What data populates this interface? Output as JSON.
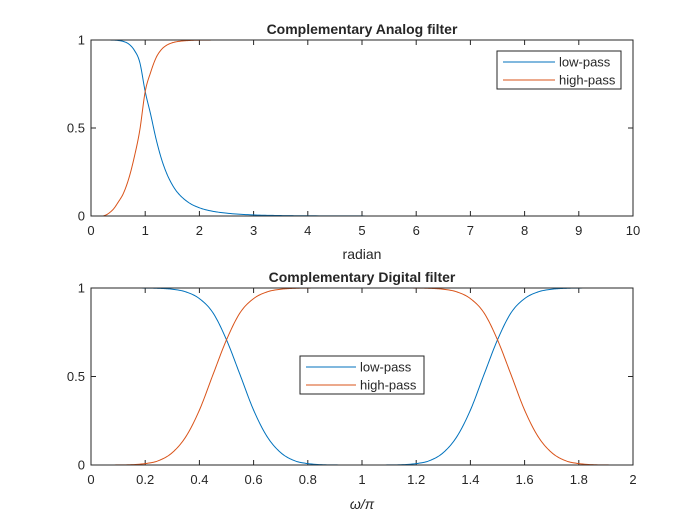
{
  "colors": {
    "low_pass": "#0072BD",
    "high_pass": "#D95319",
    "axes": "#262626",
    "background": "#FFFFFF"
  },
  "chart_data": [
    {
      "type": "line",
      "title": "Complementary Analog filter",
      "xlabel": "radian",
      "ylabel": "",
      "xlim": [
        0,
        10
      ],
      "ylim": [
        0,
        1
      ],
      "xticks": [
        0,
        1,
        2,
        3,
        4,
        5,
        6,
        7,
        8,
        9,
        10
      ],
      "yticks": [
        0,
        0.5,
        1
      ],
      "grid": false,
      "legend_position": "top-right",
      "series": [
        {
          "name": "low-pass",
          "x": [
            0,
            0.2,
            0.4,
            0.5,
            0.6,
            0.7,
            0.8,
            0.9,
            1.0,
            1.1,
            1.2,
            1.3,
            1.4,
            1.5,
            1.6,
            1.8,
            2.0,
            2.2,
            2.5,
            3.0,
            3.5,
            4.0,
            5.0,
            6.0,
            7.0,
            8.0,
            9.0,
            10.0
          ],
          "y": [
            1.0,
            1.0,
            0.9994,
            0.9973,
            0.9914,
            0.9764,
            0.9415,
            0.873,
            0.7071,
            0.578,
            0.4383,
            0.3244,
            0.2393,
            0.1773,
            0.1322,
            0.0768,
            0.0467,
            0.0296,
            0.0162,
            0.0061,
            0.0026,
            0.0013,
            0.0004,
            0.0001,
            0.0001,
            0.0,
            0.0,
            0.0
          ]
        },
        {
          "name": "high-pass",
          "x": [
            0,
            0.2,
            0.4,
            0.5,
            0.6,
            0.7,
            0.8,
            0.9,
            1.0,
            1.1,
            1.2,
            1.3,
            1.4,
            1.5,
            1.6,
            1.8,
            2.0,
            2.2,
            2.5,
            3.0,
            3.5,
            4.0,
            5.0,
            6.0,
            7.0,
            8.0,
            9.0,
            10.0
          ],
          "y": [
            0.0,
            0.0,
            0.0348,
            0.0777,
            0.1302,
            0.2159,
            0.3369,
            0.4875,
            0.7071,
            0.8159,
            0.8988,
            0.9459,
            0.971,
            0.9842,
            0.9912,
            0.997,
            0.9989,
            0.9996,
            0.9999,
            1.0,
            1.0,
            1.0,
            1.0,
            1.0,
            1.0,
            1.0,
            1.0,
            1.0
          ]
        }
      ]
    },
    {
      "type": "line",
      "title": "Complementary Digital filter",
      "xlabel": "ω/π",
      "ylabel": "",
      "xlim": [
        0,
        2
      ],
      "ylim": [
        0,
        1
      ],
      "xticks": [
        "0",
        "0.2",
        "0.4",
        "0.6",
        "0.8",
        "1",
        "1.2",
        "1.4",
        "1.6",
        "1.8",
        "2"
      ],
      "yticks": [
        0,
        0.5,
        1
      ],
      "grid": false,
      "legend_position": "center",
      "series": [
        {
          "name": "low-pass",
          "x": [
            0,
            0.1,
            0.2,
            0.25,
            0.3,
            0.35,
            0.4,
            0.45,
            0.5,
            0.55,
            0.6,
            0.65,
            0.7,
            0.75,
            0.8,
            0.9,
            1.0,
            1.1,
            1.2,
            1.25,
            1.3,
            1.35,
            1.4,
            1.45,
            1.5,
            1.55,
            1.6,
            1.65,
            1.7,
            1.75,
            1.8,
            1.9,
            2.0
          ],
          "y": [
            1.0,
            1.0,
            0.9995,
            0.998,
            0.993,
            0.978,
            0.94,
            0.86,
            0.7071,
            0.51,
            0.31,
            0.16,
            0.07,
            0.025,
            0.008,
            0.0005,
            0.0,
            0.0005,
            0.008,
            0.025,
            0.07,
            0.16,
            0.31,
            0.51,
            0.7071,
            0.86,
            0.94,
            0.978,
            0.993,
            0.998,
            0.9995,
            1.0,
            1.0
          ]
        },
        {
          "name": "high-pass",
          "x": [
            0,
            0.1,
            0.2,
            0.25,
            0.3,
            0.35,
            0.4,
            0.45,
            0.5,
            0.55,
            0.6,
            0.65,
            0.7,
            0.75,
            0.8,
            0.9,
            1.0,
            1.1,
            1.2,
            1.25,
            1.3,
            1.35,
            1.4,
            1.45,
            1.5,
            1.55,
            1.6,
            1.65,
            1.7,
            1.75,
            1.8,
            1.9,
            2.0
          ],
          "y": [
            0.0,
            0.0005,
            0.008,
            0.025,
            0.07,
            0.16,
            0.31,
            0.51,
            0.7071,
            0.86,
            0.94,
            0.978,
            0.993,
            0.998,
            0.9995,
            1.0,
            1.0,
            1.0,
            0.9995,
            0.998,
            0.993,
            0.978,
            0.94,
            0.86,
            0.7071,
            0.51,
            0.31,
            0.16,
            0.07,
            0.025,
            0.008,
            0.0005,
            0.0
          ]
        }
      ]
    }
  ]
}
